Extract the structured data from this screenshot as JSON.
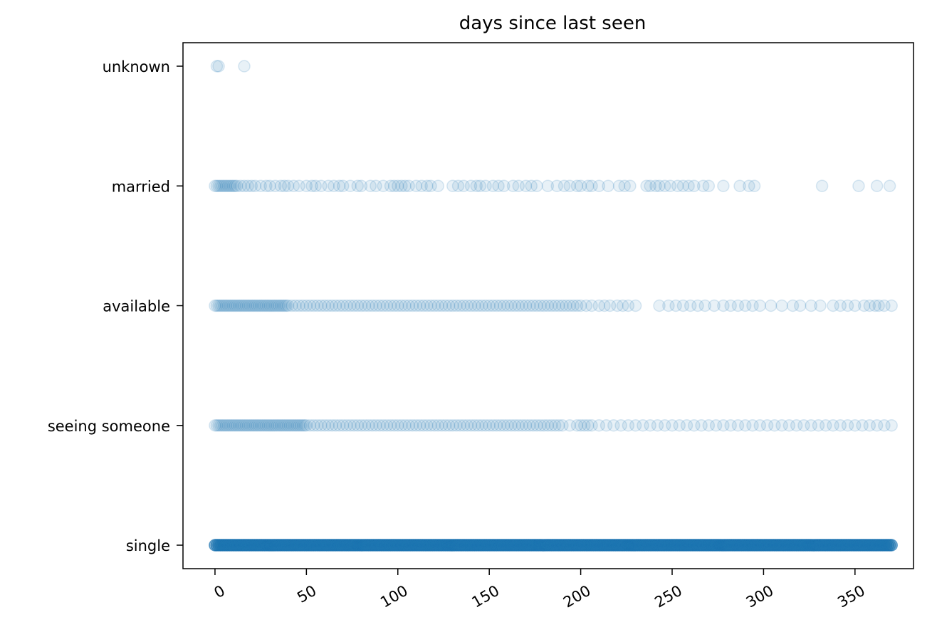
{
  "chart_data": {
    "type": "scatter",
    "title": "days since last seen",
    "xlabel": "",
    "ylabel": "",
    "xlim": [
      -17.5,
      382
    ],
    "x_ticks": [
      0,
      50,
      100,
      150,
      200,
      250,
      300,
      350
    ],
    "x_tick_rotation_deg": 30,
    "categories": [
      "single",
      "seeing someone",
      "available",
      "married",
      "unknown"
    ],
    "marker": {
      "shape": "circle",
      "color": "#1f77b4",
      "alpha": 0.1
    },
    "grid": false,
    "legend": "none",
    "series": [
      {
        "category": "unknown",
        "x": [
          1,
          2,
          16
        ]
      },
      {
        "category": "married",
        "x": [
          0,
          1,
          2,
          3,
          4,
          5,
          6,
          7,
          8,
          9,
          10,
          11,
          12,
          14,
          16,
          18,
          20,
          22,
          25,
          28,
          30,
          33,
          36,
          38,
          40,
          43,
          46,
          50,
          53,
          55,
          58,
          62,
          65,
          68,
          70,
          74,
          78,
          80,
          85,
          88,
          92,
          96,
          98,
          100,
          102,
          104,
          106,
          110,
          113,
          116,
          118,
          122,
          130,
          133,
          136,
          140,
          143,
          145,
          148,
          152,
          155,
          158,
          163,
          166,
          170,
          173,
          176,
          182,
          187,
          191,
          194,
          198,
          200,
          204,
          206,
          210,
          215,
          221,
          224,
          227,
          236,
          238,
          241,
          243,
          246,
          249,
          253,
          256,
          259,
          262,
          267,
          270,
          278,
          287,
          292,
          295,
          332,
          352,
          362,
          369
        ]
      },
      {
        "category": "available",
        "x": [
          0,
          1,
          2,
          3,
          4,
          5,
          6,
          7,
          8,
          9,
          10,
          11,
          12,
          13,
          14,
          15,
          16,
          17,
          18,
          19,
          20,
          21,
          22,
          23,
          24,
          25,
          26,
          27,
          28,
          29,
          30,
          31,
          32,
          33,
          34,
          35,
          36,
          37,
          38,
          39,
          40,
          42,
          44,
          46,
          48,
          50,
          52,
          54,
          56,
          58,
          60,
          62,
          64,
          66,
          68,
          70,
          72,
          74,
          76,
          78,
          80,
          82,
          84,
          86,
          88,
          90,
          92,
          94,
          96,
          98,
          100,
          102,
          104,
          106,
          108,
          110,
          112,
          114,
          116,
          118,
          120,
          122,
          124,
          126,
          128,
          130,
          132,
          134,
          136,
          138,
          140,
          142,
          144,
          146,
          148,
          150,
          152,
          154,
          156,
          158,
          160,
          162,
          164,
          166,
          168,
          170,
          172,
          174,
          176,
          178,
          180,
          182,
          184,
          186,
          188,
          190,
          192,
          194,
          196,
          198,
          200,
          203,
          206,
          210,
          213,
          216,
          220,
          223,
          226,
          230,
          243,
          248,
          252,
          256,
          260,
          264,
          268,
          273,
          278,
          282,
          286,
          290,
          294,
          298,
          304,
          310,
          316,
          320,
          326,
          331,
          338,
          342,
          346,
          350,
          355,
          358,
          361,
          363,
          366,
          370
        ]
      },
      {
        "category": "seeing someone",
        "x": [
          0,
          1,
          2,
          3,
          4,
          5,
          6,
          7,
          8,
          9,
          10,
          11,
          12,
          13,
          14,
          15,
          16,
          17,
          18,
          19,
          20,
          21,
          22,
          23,
          24,
          25,
          26,
          27,
          28,
          29,
          30,
          31,
          32,
          33,
          34,
          35,
          36,
          37,
          38,
          39,
          40,
          41,
          42,
          43,
          44,
          45,
          46,
          47,
          48,
          49,
          50,
          52,
          54,
          56,
          58,
          60,
          62,
          64,
          66,
          68,
          70,
          72,
          74,
          76,
          78,
          80,
          82,
          84,
          86,
          88,
          90,
          92,
          94,
          96,
          98,
          100,
          102,
          104,
          106,
          108,
          110,
          112,
          114,
          116,
          118,
          120,
          122,
          124,
          126,
          128,
          130,
          132,
          134,
          136,
          138,
          140,
          142,
          144,
          146,
          148,
          150,
          152,
          154,
          156,
          158,
          160,
          162,
          164,
          166,
          168,
          170,
          172,
          174,
          176,
          178,
          180,
          182,
          184,
          186,
          188,
          190,
          194,
          198,
          200,
          202,
          204,
          206,
          210,
          214,
          218,
          222,
          226,
          230,
          234,
          238,
          242,
          246,
          250,
          254,
          258,
          262,
          266,
          270,
          274,
          278,
          282,
          286,
          290,
          294,
          298,
          302,
          306,
          310,
          314,
          318,
          322,
          326,
          330,
          334,
          338,
          342,
          346,
          350,
          354,
          358,
          362,
          366,
          370
        ]
      },
      {
        "category": "single",
        "x_range": [
          0,
          370
        ],
        "dense": true
      }
    ]
  }
}
